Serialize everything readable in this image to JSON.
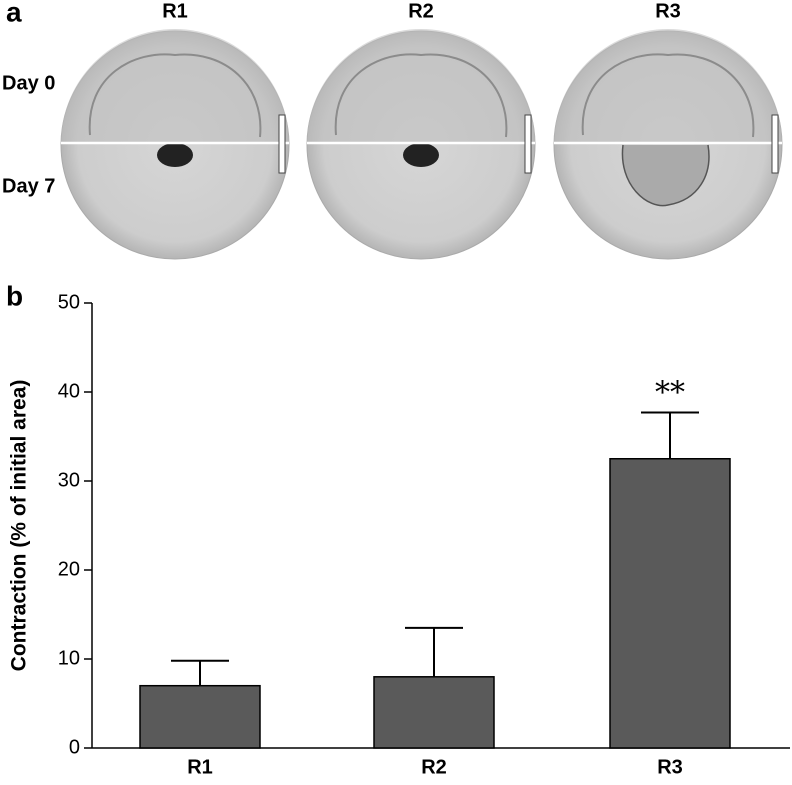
{
  "panel_a": {
    "label": "a",
    "columns": [
      "R1",
      "R2",
      "R3"
    ],
    "rows": [
      "Day 0",
      "Day 7"
    ]
  },
  "chart_data": {
    "type": "bar",
    "panel_label": "b",
    "y_label": "Contraction (% of initial area)",
    "categories": [
      "R1",
      "R2",
      "R3"
    ],
    "values": [
      7,
      8,
      32.5
    ],
    "errors": [
      2.8,
      5.5,
      5.2
    ],
    "color": "#5a5a5a",
    "ylim": [
      0,
      50
    ],
    "yticks": [
      0,
      10,
      20,
      30,
      40,
      50
    ],
    "annotations": [
      {
        "text": "**",
        "category": "R3"
      }
    ]
  }
}
